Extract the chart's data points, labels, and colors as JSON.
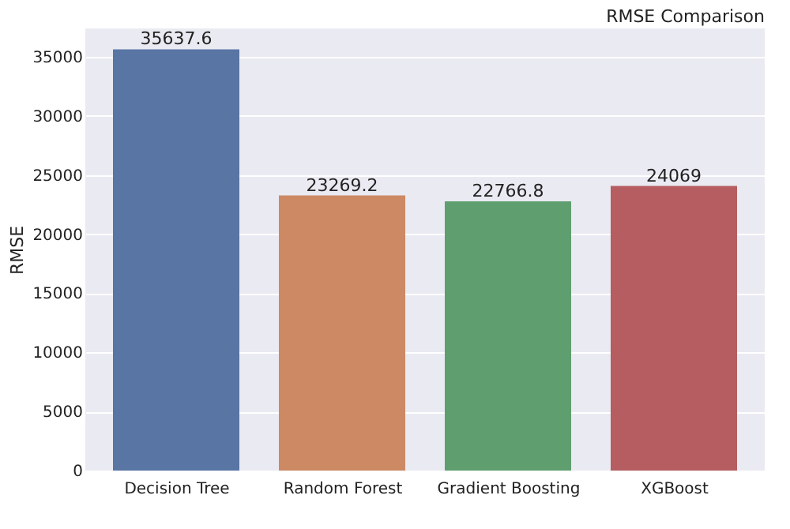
{
  "chart_data": {
    "type": "bar",
    "title": "RMSE Comparison",
    "ylabel": "RMSE",
    "categories": [
      "Decision Tree",
      "Random Forest",
      "Gradient Boosting",
      "XGBoost"
    ],
    "values": [
      35637.6,
      23269.2,
      22766.8,
      24069
    ],
    "colors": [
      "#5875a4",
      "#cc8963",
      "#5f9e6e",
      "#b55d60"
    ],
    "value_labels": [
      "35637.6",
      "23269.2",
      "22766.8",
      "24069"
    ],
    "ylim": [
      0,
      37400
    ],
    "yticks": [
      0,
      5000,
      10000,
      15000,
      20000,
      25000,
      30000,
      35000
    ],
    "grid": "y"
  }
}
